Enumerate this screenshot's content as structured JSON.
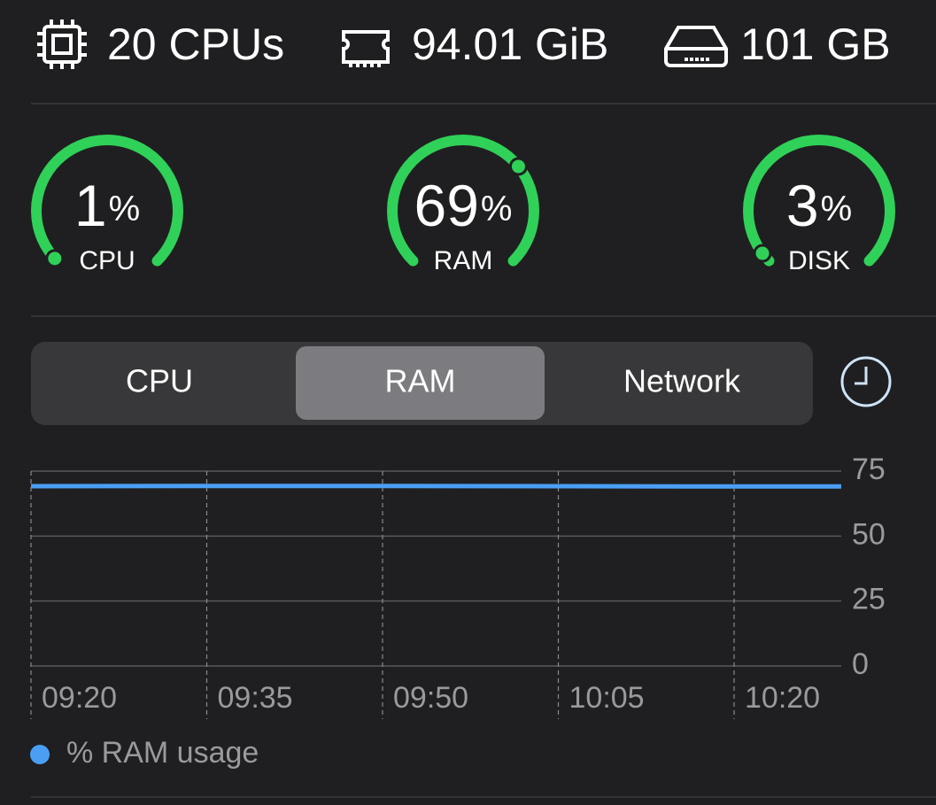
{
  "header": {
    "cpus": "20 CPUs",
    "memory": "94.01 GiB",
    "disk": "101 GB"
  },
  "gauges": [
    {
      "value": 1,
      "unit": "%",
      "label": "CPU",
      "lim": [
        0,
        100
      ],
      "color": "#30d158"
    },
    {
      "value": 69,
      "unit": "%",
      "label": "RAM",
      "lim": [
        0,
        100
      ],
      "color": "#30d158"
    },
    {
      "value": 3,
      "unit": "%",
      "label": "DISK",
      "lim": [
        0,
        100
      ],
      "color": "#30d158"
    }
  ],
  "tabs": [
    {
      "label": "CPU",
      "active": false
    },
    {
      "label": "RAM",
      "active": true
    },
    {
      "label": "Network",
      "active": false
    }
  ],
  "chart_data": {
    "type": "line",
    "x": [
      "09:20",
      "09:35",
      "09:50",
      "10:05",
      "10:20",
      null
    ],
    "series": [
      {
        "name": "% RAM usage",
        "color": "#4a9ff5",
        "values": [
          69.2,
          69.3,
          69.3,
          69.2,
          69.1,
          69.1
        ]
      }
    ],
    "ylim": [
      0,
      75
    ],
    "yticks": [
      0,
      25,
      50,
      75
    ],
    "grid": true
  }
}
